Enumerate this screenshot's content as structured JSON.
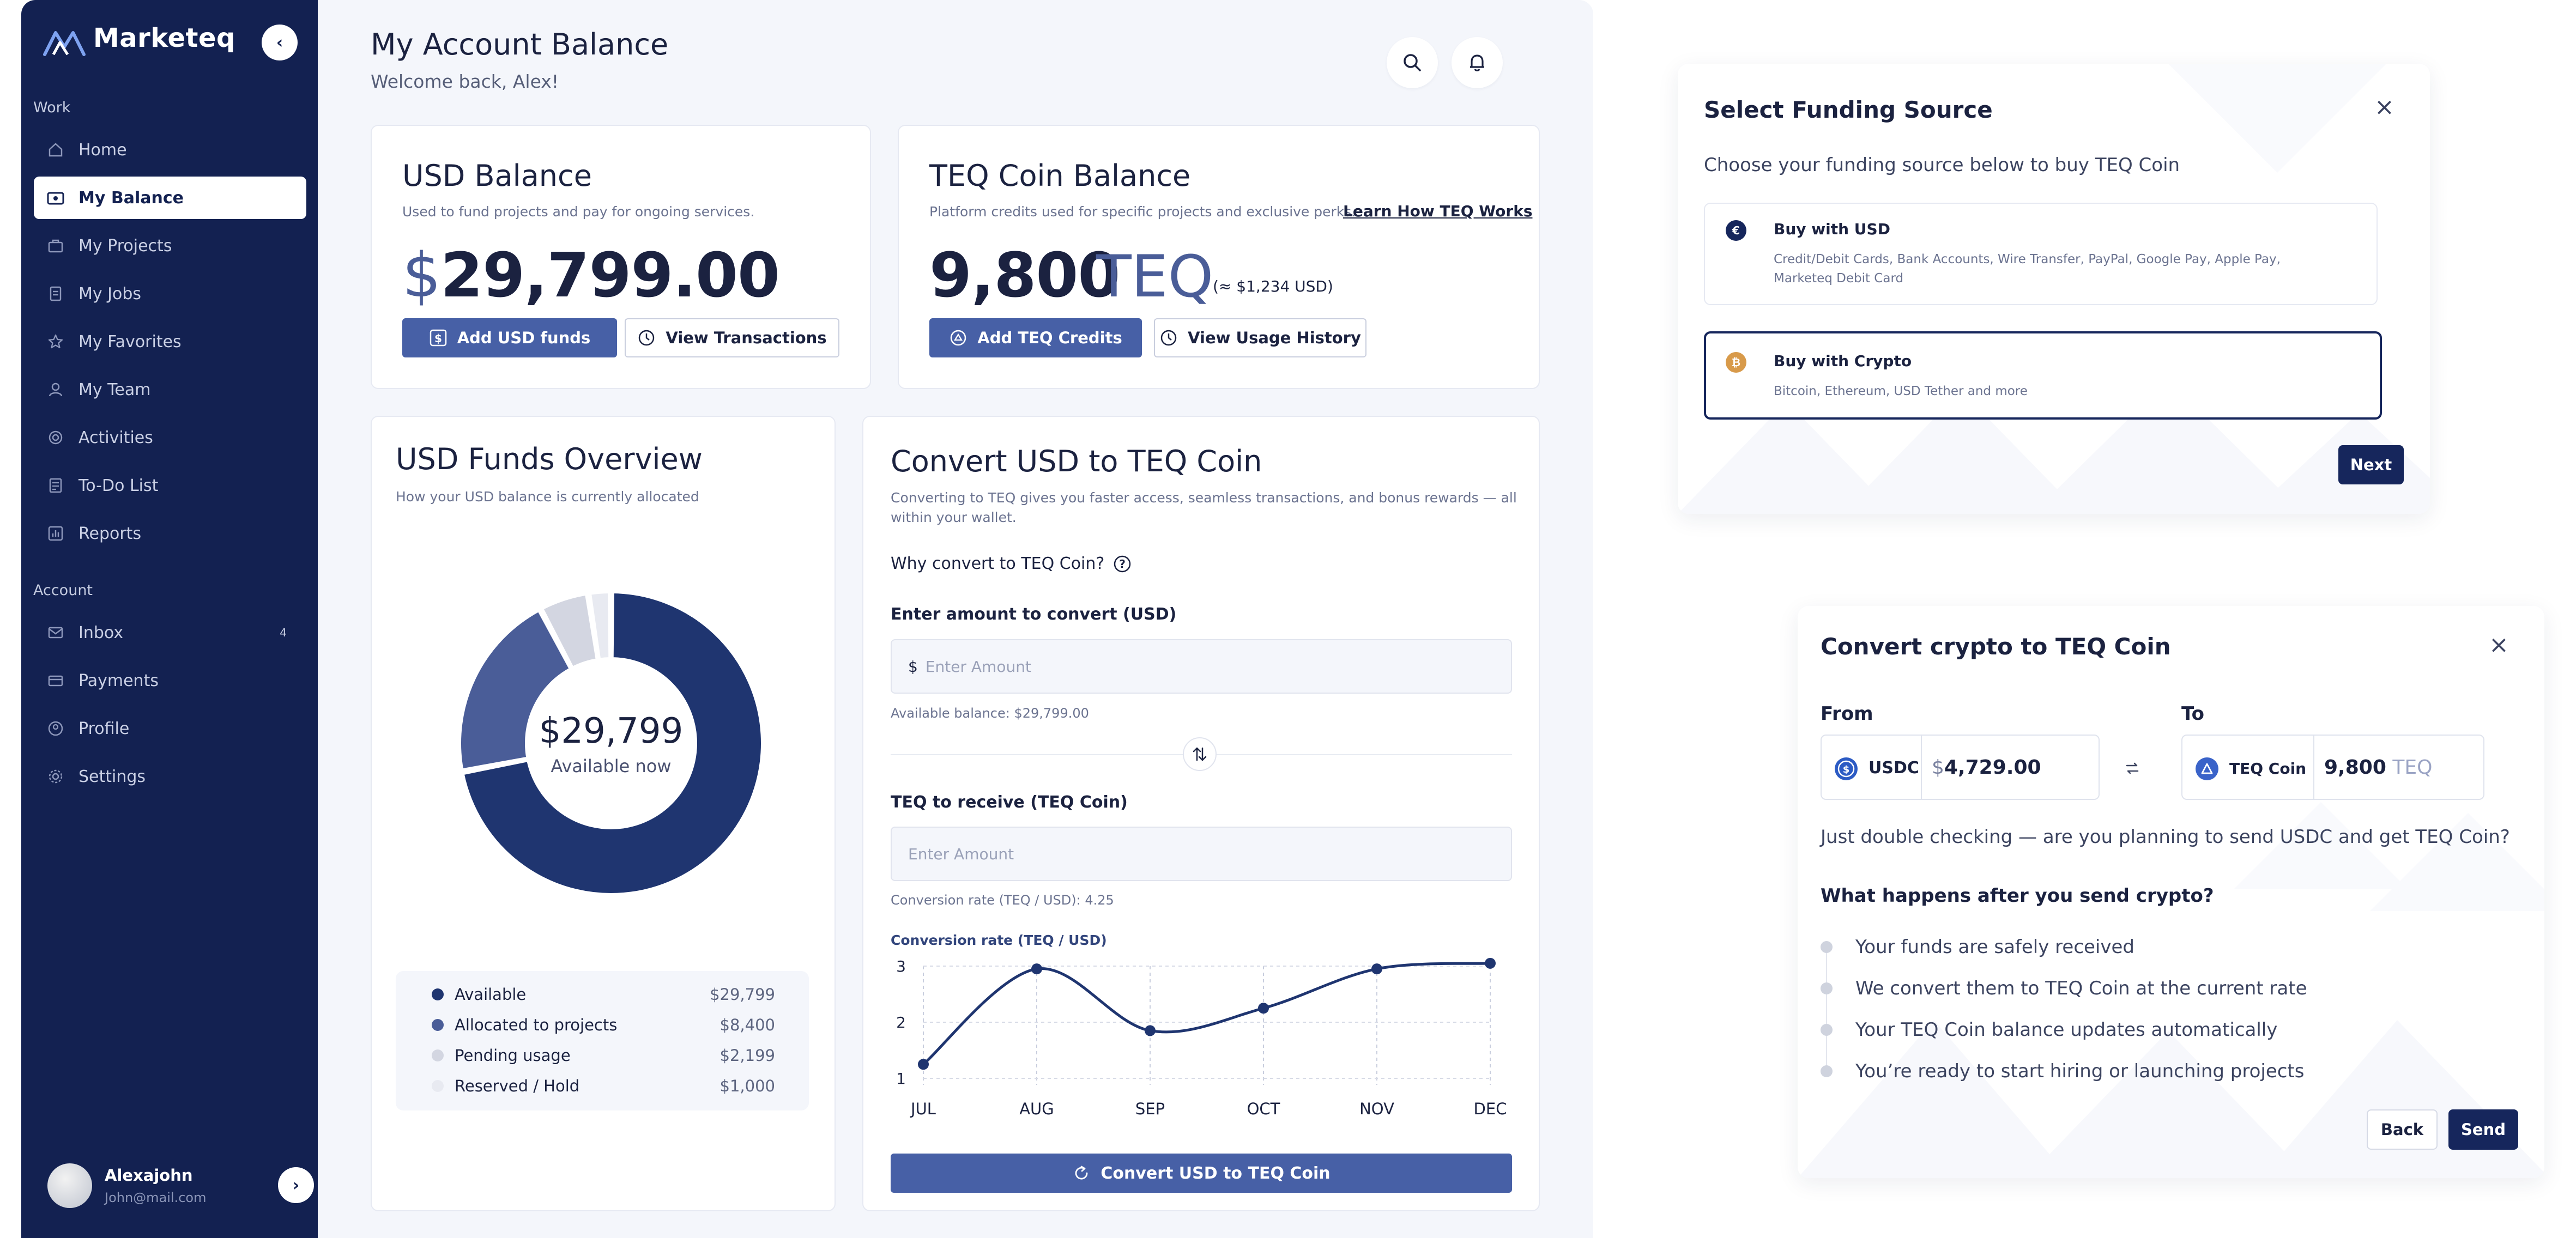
{
  "app": {
    "name": "Marketeq"
  },
  "sidebar": {
    "collapse_icon": "‹",
    "work_label": "Work",
    "account_label": "Account",
    "items": [
      {
        "label": "Home",
        "icon": "home-icon"
      },
      {
        "label": "My Balance",
        "icon": "wallet-icon",
        "active": true
      },
      {
        "label": "My Projects",
        "icon": "briefcase-icon"
      },
      {
        "label": "My Jobs",
        "icon": "document-icon"
      },
      {
        "label": "My Favorites",
        "icon": "star-icon"
      },
      {
        "label": "My Team",
        "icon": "user-icon"
      },
      {
        "label": "Activities",
        "icon": "target-icon"
      },
      {
        "label": "To-Do List",
        "icon": "checklist-icon"
      },
      {
        "label": "Reports",
        "icon": "chart-icon"
      }
    ],
    "account_items": [
      {
        "label": "Inbox",
        "icon": "mail-icon",
        "badge": "4"
      },
      {
        "label": "Payments",
        "icon": "card-icon"
      },
      {
        "label": "Profile",
        "icon": "profile-icon"
      },
      {
        "label": "Settings",
        "icon": "gear-icon"
      }
    ],
    "user": {
      "name": "Alexajohn",
      "email": "John@mail.com",
      "arrow": "›"
    }
  },
  "header": {
    "title": "My Account Balance",
    "subtitle": "Welcome back, Alex!"
  },
  "usd_card": {
    "title": "USD Balance",
    "subtitle": "Used to fund projects and pay for ongoing services.",
    "currency": "$",
    "amount": "29,799.00",
    "add_btn": "Add USD funds",
    "view_btn": "View Transactions"
  },
  "teq_card": {
    "title": "TEQ Coin Balance",
    "subtitle": "Platform credits used for specific projects and exclusive perks.",
    "learn_link": "Learn How TEQ Works",
    "amount": "9,800",
    "unit": "TEQ",
    "approx": "(≈ $1,234 USD)",
    "add_btn": "Add TEQ Credits",
    "view_btn": "View Usage History"
  },
  "overview": {
    "title": "USD Funds Overview",
    "subtitle": "How your USD balance is currently allocated",
    "center_value": "$29,799",
    "center_label": "Available now",
    "legend": [
      {
        "label": "Available",
        "value": "$29,799",
        "color": "#1f3570",
        "amount": 29799
      },
      {
        "label": "Allocated to projects",
        "value": "$8,400",
        "color": "#4a5d98",
        "amount": 8400
      },
      {
        "label": "Pending usage",
        "value": "$2,199",
        "color": "#d3d6e1",
        "amount": 2199
      },
      {
        "label": "Reserved / Hold",
        "value": "$1,000",
        "color": "#e8eaf1",
        "amount": 1000
      }
    ]
  },
  "convert": {
    "title": "Convert USD to TEQ Coin",
    "subtitle_line1": "Converting to TEQ gives you faster access, seamless transactions, and bonus rewards — all",
    "subtitle_line2": "within your wallet.",
    "why": "Why convert to TEQ Coin?",
    "amount_label": "Enter amount to convert (USD)",
    "amount_prefix": "$",
    "amount_placeholder": "Enter Amount",
    "available": "Available balance: $29,799.00",
    "teq_label": "TEQ to receive (TEQ Coin)",
    "teq_placeholder": "Enter Amount",
    "rate_text": "Conversion rate (TEQ / USD): 4.25",
    "chart_title": "Conversion rate (TEQ / USD)",
    "button": "Convert USD to TEQ Coin"
  },
  "chart_data": {
    "type": "line",
    "title": "Conversion rate (TEQ / USD)",
    "categories": [
      "JUL",
      "AUG",
      "SEP",
      "OCT",
      "NOV",
      "DEC"
    ],
    "values": [
      1.25,
      2.95,
      1.85,
      2.25,
      2.95,
      3.05
    ],
    "ylim": [
      1,
      3
    ],
    "yticks": [
      "1",
      "2",
      "3"
    ],
    "grid": true
  },
  "funding": {
    "title": "Select Funding Source",
    "close": "×",
    "subtitle": "Choose your funding source below to buy TEQ Coin",
    "usd_title": "Buy with USD",
    "usd_desc_1": "Credit/Debit Cards, Bank Accounts, Wire Transfer, PayPal, Google Pay, Apple Pay,",
    "usd_desc_2": "Marketeq Debit Card",
    "usd_icon": "€",
    "crypto_title": "Buy with Crypto",
    "crypto_desc": "Bitcoin, Ethereum, USD Tether and more",
    "crypto_icon": "₿",
    "next": "Next"
  },
  "crypto_convert": {
    "title": "Convert crypto to TEQ Coin",
    "close": "×",
    "from_label": "From",
    "to_label": "To",
    "from_coin": "USDC",
    "from_prefix": "$",
    "from_amount": "4,729.00",
    "to_coin": "TEQ Coin",
    "to_amount": "9,800",
    "to_unit": "TEQ",
    "confirm": "Just double checking — are you planning to send USDC and get TEQ Coin?",
    "steps_title": "What happens after you send crypto?",
    "steps": [
      "Your funds are safely received",
      "We convert them to TEQ Coin at the current rate",
      "Your TEQ Coin balance updates automatically",
      "You’re ready to start hiring or launching projects"
    ],
    "back": "Back",
    "send": "Send"
  }
}
